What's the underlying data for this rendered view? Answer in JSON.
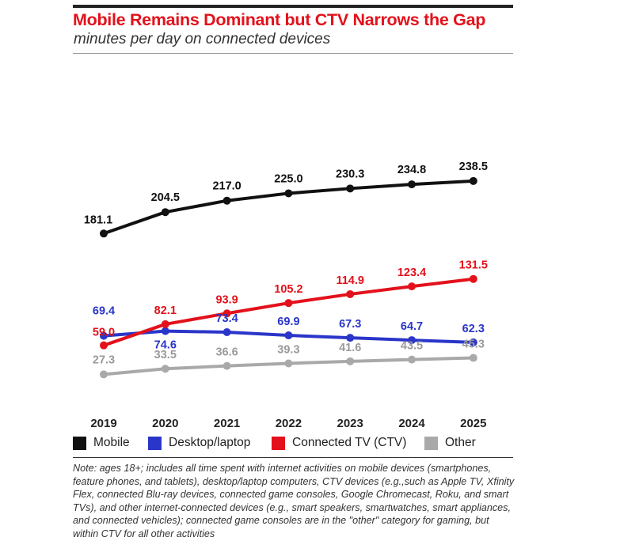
{
  "title": "Mobile Remains Dominant but CTV Narrows the Gap",
  "subtitle": "minutes per day on connected devices",
  "note": "Note: ages 18+; includes all time spent with internet activities on mobile devices (smartphones, feature phones, and tablets), desktop/laptop computers, CTV devices (e.g.,such as Apple TV, Xfinity Flex, connected Blu-ray devices, connected game consoles, Google Chromecast, Roku, and smart TVs), and other internet-connected devices (e.g., smart speakers, smartwatches, smart appliances, and connected vehicles); connected game consoles are in the \"other\" category for gaming, but within CTV for all other activities",
  "legend": [
    {
      "label": "Mobile",
      "color": "#111111"
    },
    {
      "label": "Desktop/laptop",
      "color": "#2a35c9"
    },
    {
      "label": "Connected TV (CTV)",
      "color": "#e3111b"
    },
    {
      "label": "Other",
      "color": "#a9a9a9"
    }
  ],
  "chart_data": {
    "type": "line",
    "categories": [
      "2019",
      "2020",
      "2021",
      "2022",
      "2023",
      "2024",
      "2025"
    ],
    "series": [
      {
        "name": "Mobile",
        "color": "#111111",
        "labels": [
          "181.1",
          "204.5",
          "217.0",
          "225.0",
          "230.3",
          "234.8",
          "238.5"
        ],
        "values": [
          181.1,
          204.5,
          217.0,
          225.0,
          230.3,
          234.8,
          238.5
        ]
      },
      {
        "name": "Desktop/laptop",
        "color": "#2a35c9",
        "labels": [
          "69.4",
          "74.6",
          "73.4",
          "69.9",
          "67.3",
          "64.7",
          "62.3"
        ],
        "values": [
          69.4,
          74.6,
          73.4,
          69.9,
          67.3,
          64.7,
          62.3
        ]
      },
      {
        "name": "Connected TV (CTV)",
        "color": "#e3111b",
        "labels": [
          "59.0",
          "82.1",
          "93.9",
          "105.2",
          "114.9",
          "123.4",
          "131.5"
        ],
        "values": [
          59.0,
          82.1,
          93.9,
          105.2,
          114.9,
          123.4,
          131.5
        ]
      },
      {
        "name": "Other",
        "color": "#a9a9a9",
        "labels": [
          "27.3",
          "33.5",
          "36.6",
          "39.3",
          "41.6",
          "43.5",
          "45.3"
        ],
        "values": [
          27.3,
          33.5,
          36.6,
          39.3,
          41.6,
          43.5,
          45.3
        ]
      }
    ],
    "xlabel": "",
    "ylabel": "",
    "ylim": [
      0,
      260
    ],
    "grid": false,
    "legend_position": "bottom"
  }
}
